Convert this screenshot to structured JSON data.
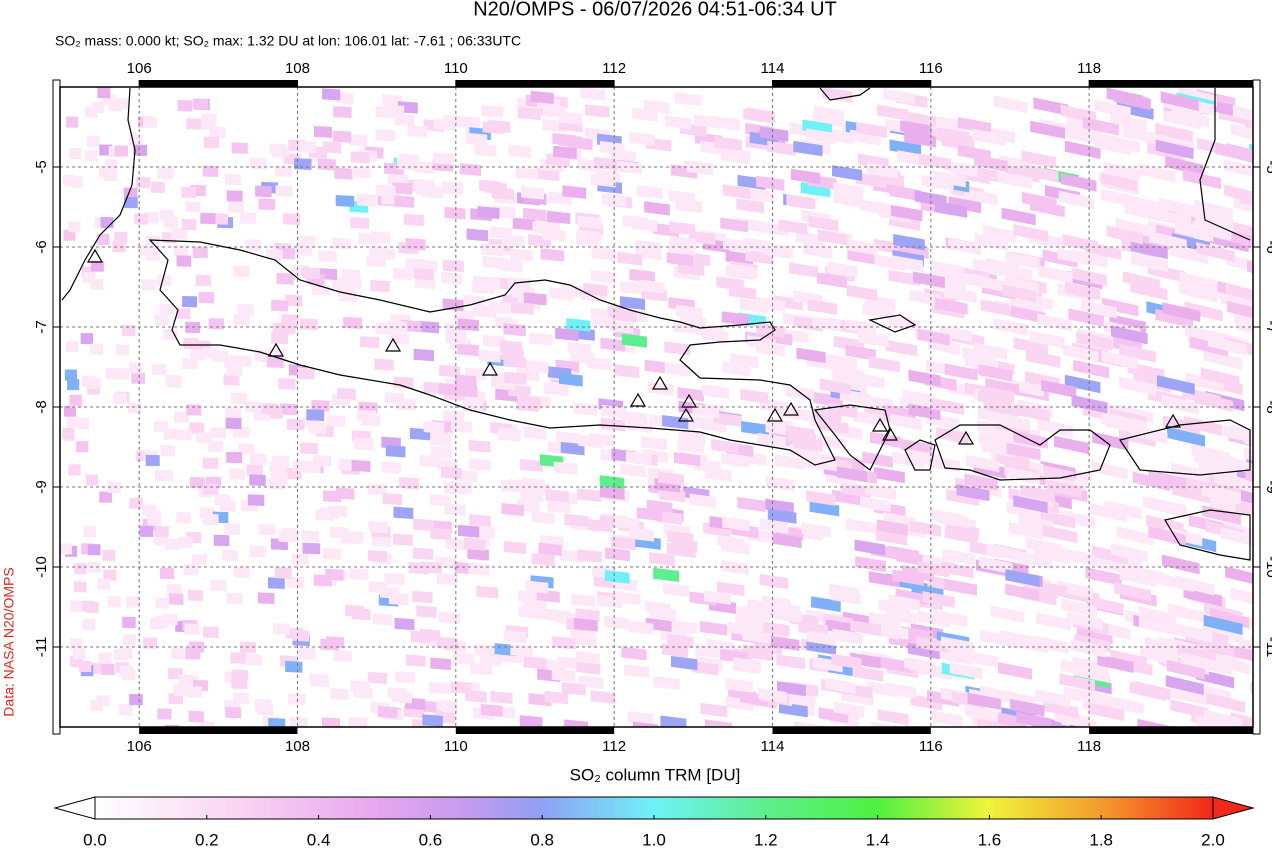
{
  "header": {
    "title": "N20/OMPS - 06/07/2026 04:51-06:34 UT",
    "subtitle": "SO₂ mass: 0.000 kt; SO₂ max: 1.32 DU at lon: 106.01 lat: -7.61 ; 06:33UTC"
  },
  "map": {
    "xlim": [
      105,
      120.07
    ],
    "ylim": [
      -12,
      -4
    ],
    "xticks": [
      106,
      108,
      110,
      112,
      114,
      116,
      118
    ],
    "yticks": [
      -5,
      -6,
      -7,
      -8,
      -9,
      -10,
      -11
    ],
    "grid": true,
    "credit": "Data: NASA N20/OMPS"
  },
  "colorbar": {
    "label": "SO₂ column TRM [DU]",
    "range": [
      0,
      2
    ],
    "ticks": [
      {
        "value": 0,
        "label": "0.0"
      },
      {
        "value": 0.2,
        "label": "0.2"
      },
      {
        "value": 0.4,
        "label": "0.4"
      },
      {
        "value": 0.6,
        "label": "0.6"
      },
      {
        "value": 0.8,
        "label": "0.8"
      },
      {
        "value": 1,
        "label": "1.0"
      },
      {
        "value": 1.2,
        "label": "1.2"
      },
      {
        "value": 1.4,
        "label": "1.4"
      },
      {
        "value": 1.6,
        "label": "1.6"
      },
      {
        "value": 1.8,
        "label": "1.8"
      },
      {
        "value": 2,
        "label": "2.0"
      }
    ]
  }
}
